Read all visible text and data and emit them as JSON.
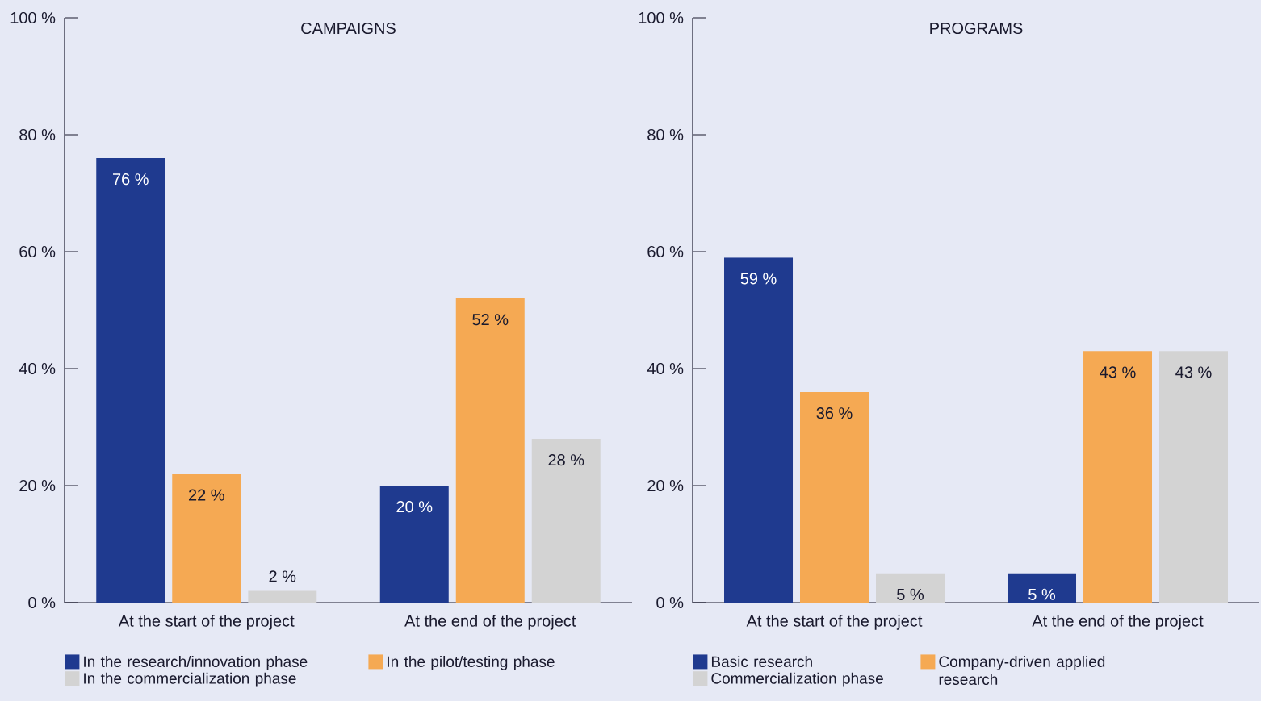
{
  "chart_data": [
    {
      "type": "bar",
      "title": "CAMPAIGNS",
      "categories": [
        "At the start of the project",
        "At the end of the project"
      ],
      "series": [
        {
          "name": "In the research/innovation phase",
          "color": "#1f3a8f",
          "values": [
            76,
            20
          ],
          "value_labels": [
            "76 %",
            "20 %"
          ]
        },
        {
          "name": "In the pilot/testing phase",
          "color": "#f5a953",
          "values": [
            22,
            52
          ],
          "value_labels": [
            "22 %",
            "52 %"
          ]
        },
        {
          "name": "In the commercialization phase",
          "color": "#d3d3d3",
          "values": [
            2,
            28
          ],
          "value_labels": [
            "2 %",
            "28 %"
          ]
        }
      ],
      "ylim": [
        0,
        100
      ],
      "yticks": [
        {
          "value": 0,
          "label": "0 %"
        },
        {
          "value": 20,
          "label": "20 %"
        },
        {
          "value": 40,
          "label": "40 %"
        },
        {
          "value": 60,
          "label": "60 %"
        },
        {
          "value": 80,
          "label": "80 %"
        },
        {
          "value": 100,
          "label": "100 %"
        }
      ],
      "legend": "bottom"
    },
    {
      "type": "bar",
      "title": "PROGRAMS",
      "categories": [
        "At the start of the project",
        "At the end of the project"
      ],
      "series": [
        {
          "name": "Basic research",
          "color": "#1f3a8f",
          "values": [
            59,
            5
          ],
          "value_labels": [
            "59 %",
            "5 %"
          ]
        },
        {
          "name": "Company-driven applied research",
          "color": "#f5a953",
          "values": [
            36,
            43
          ],
          "value_labels": [
            "36 %",
            "43 %"
          ]
        },
        {
          "name": "Commercialization phase",
          "color": "#d3d3d3",
          "values": [
            5,
            43
          ],
          "value_labels": [
            "5 %",
            "43 %"
          ]
        }
      ],
      "ylim": [
        0,
        100
      ],
      "yticks": [
        {
          "value": 0,
          "label": "0 %"
        },
        {
          "value": 20,
          "label": "20 %"
        },
        {
          "value": 40,
          "label": "40 %"
        },
        {
          "value": 60,
          "label": "60 %"
        },
        {
          "value": 80,
          "label": "80 %"
        },
        {
          "value": 100,
          "label": "100 %"
        }
      ],
      "legend": "bottom"
    }
  ]
}
